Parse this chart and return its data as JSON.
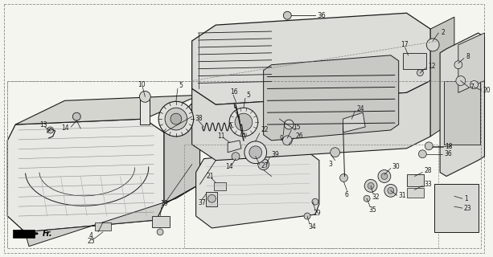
{
  "bg_color": "#f5f5f0",
  "line_color": "#1a1a1a",
  "fig_width": 6.13,
  "fig_height": 3.2,
  "dpi": 100,
  "label_fontsize": 5.5,
  "label_color": "#1a1a1a"
}
